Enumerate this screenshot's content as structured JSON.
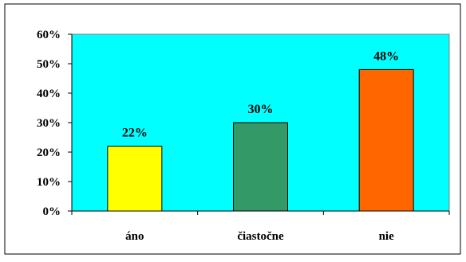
{
  "chart_data": {
    "type": "bar",
    "categories": [
      "áno",
      "čiastočne",
      "nie"
    ],
    "values": [
      22,
      30,
      48
    ],
    "value_labels": [
      "22%",
      "30%",
      "48%"
    ],
    "bar_colors": [
      "#ffff00",
      "#339966",
      "#ff6600"
    ],
    "ylim": [
      0,
      60
    ],
    "y_ticks": [
      0,
      10,
      20,
      30,
      40,
      50,
      60
    ],
    "y_tick_labels": [
      "0%",
      "10%",
      "20%",
      "30%",
      "40%",
      "50%",
      "60%"
    ],
    "plot_background": "#00ffff",
    "grid": false,
    "legend": false
  }
}
